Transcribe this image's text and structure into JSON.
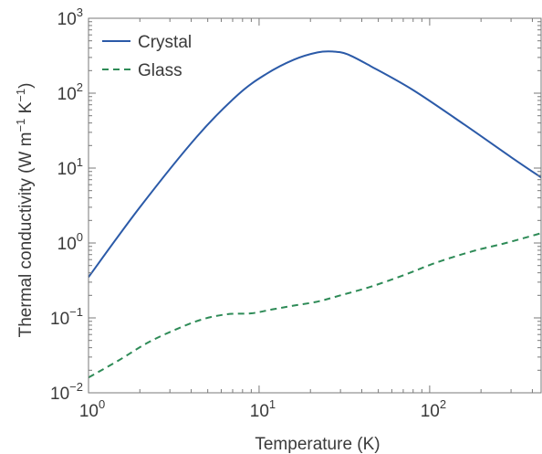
{
  "chart_data": {
    "type": "line",
    "xlabel": "Temperature (K)",
    "ylabel": {
      "prefix": "Thermal conductivity (W m",
      "exp1": "−1",
      "mid": " K",
      "exp2": "−1",
      "suffix": ")"
    },
    "x_scale": "log",
    "y_scale": "log",
    "xlim": [
      1,
      450
    ],
    "ylim": [
      0.01,
      1000
    ],
    "x_ticks": [
      {
        "value": 1,
        "base": "10",
        "exp": "0"
      },
      {
        "value": 10,
        "base": "10",
        "exp": "1"
      },
      {
        "value": 100,
        "base": "10",
        "exp": "2"
      }
    ],
    "y_ticks": [
      {
        "value": 0.01,
        "base": "10",
        "exp": "−2"
      },
      {
        "value": 0.1,
        "base": "10",
        "exp": "−1"
      },
      {
        "value": 1,
        "base": "10",
        "exp": "0"
      },
      {
        "value": 10,
        "base": "10",
        "exp": "1"
      },
      {
        "value": 100,
        "base": "10",
        "exp": "2"
      },
      {
        "value": 1000,
        "base": "10",
        "exp": "3"
      }
    ],
    "legend_position": "top-left",
    "grid": false,
    "series": [
      {
        "name": "Crystal",
        "color": "#2b5aa8",
        "style": "solid",
        "x": [
          1,
          2,
          4.3,
          7.5,
          11,
          16,
          22,
          27,
          33,
          45,
          80,
          160,
          300,
          450
        ],
        "y": [
          0.35,
          3.0,
          26,
          95,
          180,
          280,
          350,
          360,
          330,
          230,
          110,
          38,
          14,
          7.5
        ]
      },
      {
        "name": "Glass",
        "color": "#2e8b57",
        "style": "dashed",
        "x": [
          1,
          1.5,
          2.2,
          3.2,
          4.6,
          6.5,
          9,
          12,
          16,
          22,
          30,
          45,
          70,
          110,
          180,
          280,
          450
        ],
        "y": [
          0.016,
          0.027,
          0.046,
          0.069,
          0.095,
          0.112,
          0.115,
          0.13,
          0.146,
          0.165,
          0.2,
          0.26,
          0.37,
          0.55,
          0.78,
          1.0,
          1.35
        ]
      }
    ]
  }
}
